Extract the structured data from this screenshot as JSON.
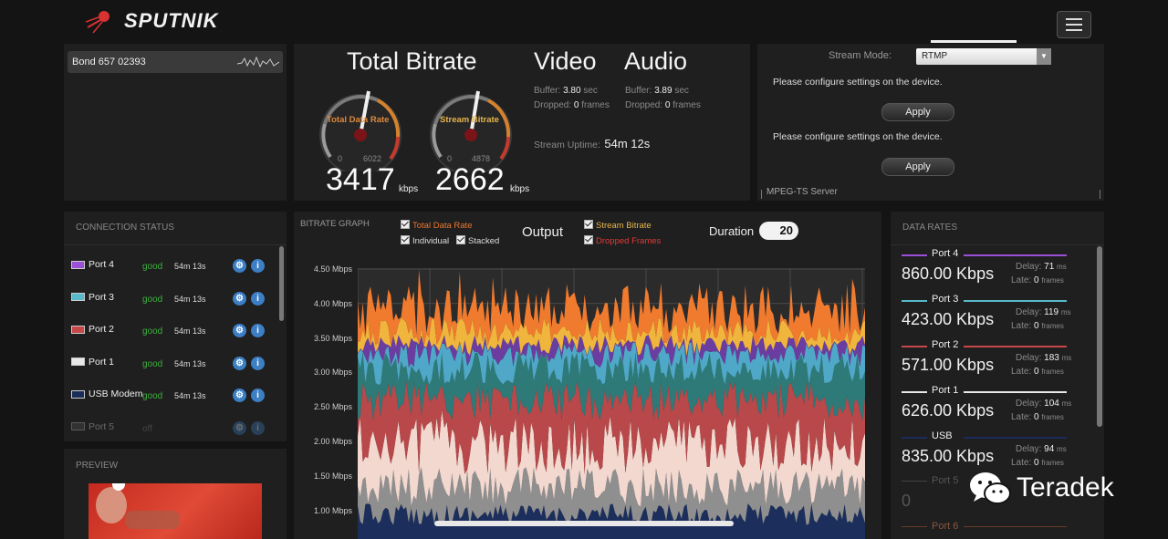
{
  "brand": {
    "logo_text": "SPUTNIK"
  },
  "device": {
    "name": "Bond 657 02393"
  },
  "bitrate": {
    "title": "Total Bitrate",
    "total_gauge_label": "Total Data Rate",
    "stream_gauge_label": "Stream Bitrate",
    "total_gauge_min": "0",
    "total_gauge_max": "6022",
    "stream_gauge_min": "0",
    "stream_gauge_max": "4878",
    "total_value": "3417",
    "stream_value": "2662",
    "unit": "kbps"
  },
  "video": {
    "title": "Video",
    "buffer_label": "Buffer:",
    "buffer_value": "3.80",
    "buffer_unit": "sec",
    "dropped_label": "Dropped:",
    "dropped_value": "0",
    "dropped_unit": "frames"
  },
  "audio": {
    "title": "Audio",
    "buffer_label": "Buffer:",
    "buffer_value": "3.89",
    "buffer_unit": "sec",
    "dropped_label": "Dropped:",
    "dropped_value": "0",
    "dropped_unit": "frames"
  },
  "uptime": {
    "label": "Stream Uptime:",
    "value": "54m 12s"
  },
  "stream_settings": {
    "mode_label": "Stream Mode:",
    "mode_value": "RTMP",
    "message1": "Please configure settings on the device.",
    "apply1": "Apply",
    "message2": "Please configure settings on the device.",
    "apply2": "Apply",
    "mpeg_label": "MPEG-TS Server"
  },
  "connection": {
    "title": "CONNECTION STATUS",
    "ports": [
      {
        "name": "Port 4",
        "status": "good",
        "time": "54m 13s",
        "color": "#9b4fd6"
      },
      {
        "name": "Port 3",
        "status": "good",
        "time": "54m 13s",
        "color": "#57b9c9"
      },
      {
        "name": "Port 2",
        "status": "good",
        "time": "54m 13s",
        "color": "#c8484a"
      },
      {
        "name": "Port 1",
        "status": "good",
        "time": "54m 13s",
        "color": "#e8e8e8"
      },
      {
        "name": "USB Modem",
        "status": "good",
        "time": "54m 13s",
        "color": "#1a2c5a"
      },
      {
        "name": "Port 5",
        "status": "off",
        "time": "",
        "color": "#555555"
      }
    ]
  },
  "preview": {
    "title": "PREVIEW"
  },
  "graph": {
    "title": "BITRATE GRAPH",
    "opt_total": "Total Data Rate",
    "opt_individual": "Individual",
    "opt_stacked": "Stacked",
    "output_label": "Output",
    "opt_stream": "Stream Bitrate",
    "opt_dropped": "Dropped Frames",
    "duration_label": "Duration",
    "duration_value": "20",
    "y_ticks": [
      "4.50 Mbps",
      "4.00 Mbps",
      "3.50 Mbps",
      "3.00 Mbps",
      "2.50 Mbps",
      "2.00 Mbps",
      "1.50 Mbps",
      "1.00 Mbps"
    ]
  },
  "data_rates": {
    "title": "DATA RATES",
    "delay_label": "Delay:",
    "late_label": "Late:",
    "ms_unit": "ms",
    "frames_unit": "frames",
    "items": [
      {
        "name": "Port 4",
        "value": "860.00 Kbps",
        "delay": "71",
        "late": "0",
        "color": "#9b4fd6"
      },
      {
        "name": "Port 3",
        "value": "423.00 Kbps",
        "delay": "119",
        "late": "0",
        "color": "#57b9c9"
      },
      {
        "name": "Port 2",
        "value": "571.00 Kbps",
        "delay": "183",
        "late": "0",
        "color": "#c8484a"
      },
      {
        "name": "Port 1",
        "value": "626.00 Kbps",
        "delay": "104",
        "late": "0",
        "color": "#e8e8e8"
      },
      {
        "name": "USB",
        "value": "835.00 Kbps",
        "delay": "94",
        "late": "0",
        "color": "#1a2c5a"
      }
    ],
    "port5_name": "Port 5",
    "port5_value": "0",
    "port6_name": "Port 6"
  },
  "watermark": {
    "text": "Teradek"
  }
}
